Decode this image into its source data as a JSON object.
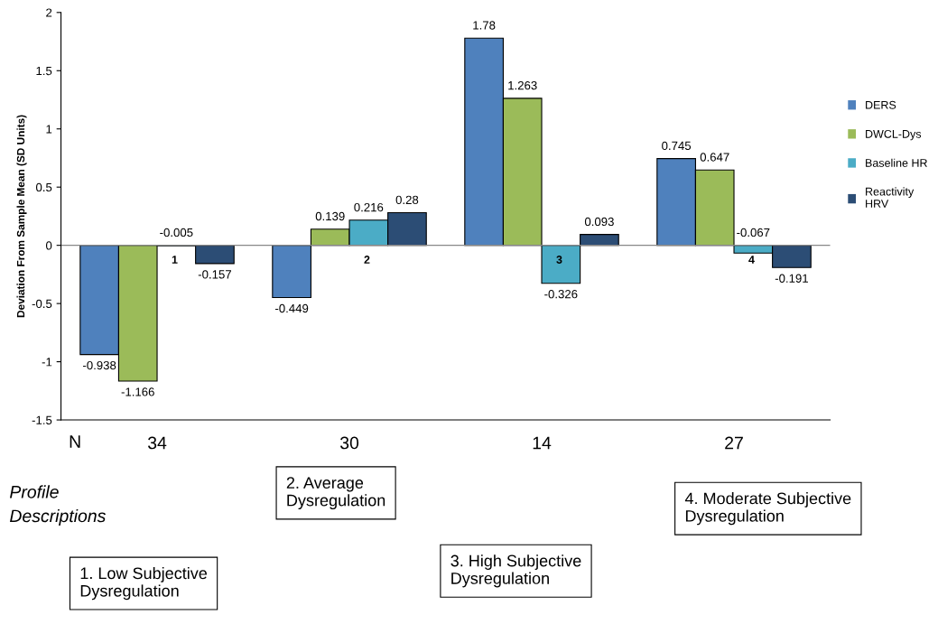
{
  "chart_data": {
    "type": "bar",
    "ylabel": "Deviation From Sample Mean (SD Units)",
    "categories": [
      "1",
      "2",
      "3",
      "4"
    ],
    "series": [
      {
        "name": "DERS",
        "color": "#4f81bd",
        "values": [
          -0.938,
          -0.449,
          1.78,
          0.745
        ]
      },
      {
        "name": "DWCL-Dys",
        "color": "#9bbb59",
        "values": [
          -1.166,
          0.139,
          1.263,
          0.647
        ]
      },
      {
        "name": "Baseline HR",
        "color": "#4bacc6",
        "values": [
          -0.005,
          0.216,
          -0.326,
          -0.067
        ]
      },
      {
        "name": "Reactivity\nHRV",
        "color": "#2c4d75",
        "values": [
          -0.157,
          0.28,
          0.093,
          -0.191
        ]
      }
    ],
    "ylim": [
      -1.5,
      2
    ],
    "yticks": [
      -1.5,
      -1,
      -0.5,
      0,
      0.5,
      1,
      1.5,
      2
    ],
    "data_labels": true,
    "legend": "right",
    "grid": false,
    "annotations": [
      "N",
      "34",
      "30",
      "14",
      "27",
      "Profile\nDescriptions",
      "1. Low Subjective\nDysregulation",
      "2. Average\nDysregulation",
      "3. High Subjective\nDysregulation",
      "4. Moderate Subjective\nDysregulation"
    ]
  }
}
